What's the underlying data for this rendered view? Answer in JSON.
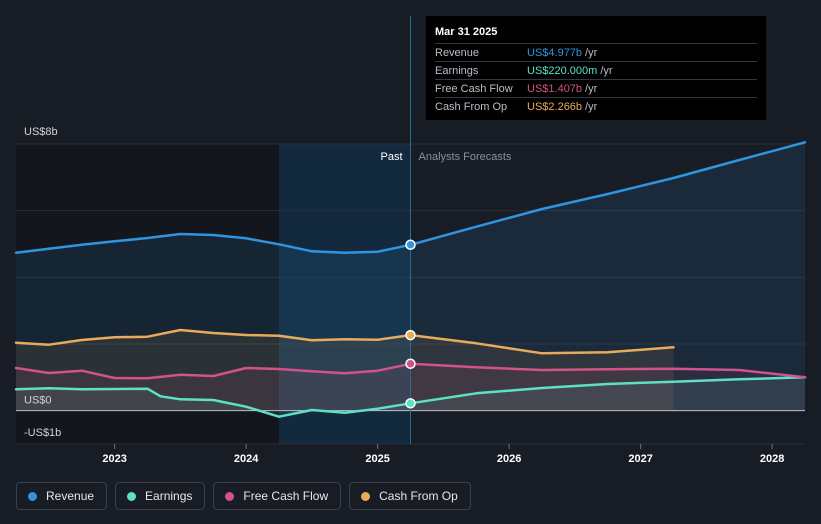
{
  "chart_data": {
    "type": "line",
    "y_unit_prefix": "US$",
    "ylim": [
      -1,
      8
    ],
    "y_labels": [
      {
        "value": 8,
        "label": "US$8b"
      },
      {
        "value": 0,
        "label": "US$0"
      },
      {
        "value": -1,
        "label": "-US$1b"
      }
    ],
    "x_range": [
      2022.25,
      2028.25
    ],
    "x_ticks": [
      {
        "value": 2023,
        "label": "2023"
      },
      {
        "value": 2024,
        "label": "2024"
      },
      {
        "value": 2025,
        "label": "2025"
      },
      {
        "value": 2026,
        "label": "2026"
      },
      {
        "value": 2027,
        "label": "2027"
      },
      {
        "value": 2028,
        "label": "2028"
      }
    ],
    "past_label": "Past",
    "forecast_label": "Analysts Forecasts",
    "split_x": 2025.25,
    "highlight_range": [
      2024.25,
      2025.25
    ],
    "series": [
      {
        "name": "Revenue",
        "color": "#2f95e0",
        "past": [
          [
            2022.25,
            4.74
          ],
          [
            2022.5,
            4.86
          ],
          [
            2022.75,
            4.98
          ],
          [
            2023.0,
            5.08
          ],
          [
            2023.25,
            5.18
          ],
          [
            2023.5,
            5.3
          ],
          [
            2023.75,
            5.27
          ],
          [
            2024.0,
            5.17
          ],
          [
            2024.25,
            4.99
          ],
          [
            2024.5,
            4.78
          ],
          [
            2024.75,
            4.74
          ],
          [
            2025.0,
            4.77
          ],
          [
            2025.25,
            4.977
          ]
        ],
        "forecast": [
          [
            2025.25,
            4.977
          ],
          [
            2025.75,
            5.52
          ],
          [
            2026.25,
            6.05
          ],
          [
            2026.75,
            6.5
          ],
          [
            2027.25,
            6.98
          ],
          [
            2027.75,
            7.52
          ],
          [
            2028.25,
            8.05
          ]
        ]
      },
      {
        "name": "Earnings",
        "color": "#5de0c5",
        "past": [
          [
            2022.25,
            0.64
          ],
          [
            2022.5,
            0.67
          ],
          [
            2022.75,
            0.64
          ],
          [
            2023.0,
            0.65
          ],
          [
            2023.25,
            0.66
          ],
          [
            2023.35,
            0.43
          ],
          [
            2023.5,
            0.34
          ],
          [
            2023.75,
            0.32
          ],
          [
            2024.0,
            0.12
          ],
          [
            2024.25,
            -0.18
          ],
          [
            2024.5,
            0.02
          ],
          [
            2024.75,
            -0.06
          ],
          [
            2025.0,
            0.06
          ],
          [
            2025.25,
            0.22
          ]
        ],
        "forecast": [
          [
            2025.25,
            0.22
          ],
          [
            2025.75,
            0.52
          ],
          [
            2026.25,
            0.68
          ],
          [
            2026.75,
            0.8
          ],
          [
            2027.25,
            0.87
          ],
          [
            2027.75,
            0.94
          ],
          [
            2028.25,
            1.0
          ]
        ]
      },
      {
        "name": "Free Cash Flow",
        "color": "#d2528a",
        "past": [
          [
            2022.25,
            1.28
          ],
          [
            2022.5,
            1.13
          ],
          [
            2022.75,
            1.2
          ],
          [
            2023.0,
            0.98
          ],
          [
            2023.25,
            0.97
          ],
          [
            2023.5,
            1.08
          ],
          [
            2023.75,
            1.04
          ],
          [
            2024.0,
            1.28
          ],
          [
            2024.25,
            1.25
          ],
          [
            2024.5,
            1.18
          ],
          [
            2024.75,
            1.12
          ],
          [
            2025.0,
            1.2
          ],
          [
            2025.25,
            1.407
          ]
        ],
        "forecast": [
          [
            2025.25,
            1.407
          ],
          [
            2025.75,
            1.3
          ],
          [
            2026.25,
            1.22
          ],
          [
            2026.75,
            1.24
          ],
          [
            2027.25,
            1.26
          ],
          [
            2027.75,
            1.22
          ],
          [
            2028.25,
            1.0
          ]
        ]
      },
      {
        "name": "Cash From Op",
        "color": "#e8ab5c",
        "past": [
          [
            2022.25,
            2.04
          ],
          [
            2022.5,
            1.98
          ],
          [
            2022.75,
            2.12
          ],
          [
            2023.0,
            2.2
          ],
          [
            2023.25,
            2.22
          ],
          [
            2023.5,
            2.42
          ],
          [
            2023.75,
            2.33
          ],
          [
            2024.0,
            2.27
          ],
          [
            2024.25,
            2.25
          ],
          [
            2024.5,
            2.11
          ],
          [
            2024.75,
            2.14
          ],
          [
            2025.0,
            2.13
          ],
          [
            2025.25,
            2.266
          ]
        ],
        "forecast": [
          [
            2025.25,
            2.266
          ],
          [
            2025.75,
            2.02
          ],
          [
            2026.25,
            1.72
          ],
          [
            2026.75,
            1.75
          ],
          [
            2027.25,
            1.9
          ]
        ]
      }
    ]
  },
  "tooltip": {
    "date": "Mar 31 2025",
    "unit": "/yr",
    "rows": [
      {
        "name": "Revenue",
        "value": "US$4.977b",
        "color": "#2f95e0"
      },
      {
        "name": "Earnings",
        "value": "US$220.000m",
        "color": "#5de0c5"
      },
      {
        "name": "Free Cash Flow",
        "value": "US$1.407b",
        "color": "#d2528a"
      },
      {
        "name": "Cash From Op",
        "value": "US$2.266b",
        "color": "#e8ab5c"
      }
    ]
  },
  "legend": [
    {
      "name": "Revenue",
      "color": "#2f95e0"
    },
    {
      "name": "Earnings",
      "color": "#5de0c5"
    },
    {
      "name": "Free Cash Flow",
      "color": "#d2528a"
    },
    {
      "name": "Cash From Op",
      "color": "#e8ab5c"
    }
  ]
}
